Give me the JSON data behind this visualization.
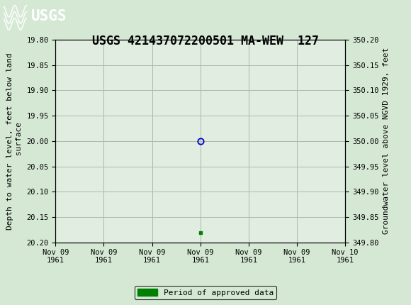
{
  "title": "USGS 421437072200501 MA-WEW  127",
  "ylabel_left": "Depth to water level, feet below land\n surface",
  "ylabel_right": "Groundwater level above NGVD 1929, feet",
  "ylim_left": [
    20.2,
    19.8
  ],
  "ylim_right": [
    349.8,
    350.2
  ],
  "yticks_left": [
    19.8,
    19.85,
    19.9,
    19.95,
    20.0,
    20.05,
    20.1,
    20.15,
    20.2
  ],
  "yticks_right": [
    350.2,
    350.15,
    350.1,
    350.05,
    350.0,
    349.95,
    349.9,
    349.85,
    349.8
  ],
  "data_point_x_hours": 12.0,
  "data_point_y": 20.0,
  "data_point_color": "#0000cc",
  "data_point_marker": "o",
  "approved_x_hours": 12.0,
  "approved_y": 20.18,
  "approved_color": "#008000",
  "approved_marker": "s",
  "x_total_hours": 24.0,
  "xtick_hours": [
    0,
    4,
    8,
    12,
    16,
    20,
    24
  ],
  "xtick_labels": [
    "Nov 09\n1961",
    "Nov 09\n1961",
    "Nov 09\n1961",
    "Nov 09\n1961",
    "Nov 09\n1961",
    "Nov 09\n1961",
    "Nov 10\n1961"
  ],
  "fig_bg_color": "#d4e8d4",
  "plot_bg_color": "#e0ede0",
  "header_bg_color": "#1a6e3c",
  "header_text_color": "#ffffff",
  "grid_color": "#a8bca8",
  "legend_label": "Period of approved data",
  "legend_color": "#008000",
  "title_fontsize": 12,
  "axis_fontsize": 8,
  "tick_fontsize": 7.5,
  "legend_fontsize": 8,
  "font_family": "DejaVu Sans Mono"
}
